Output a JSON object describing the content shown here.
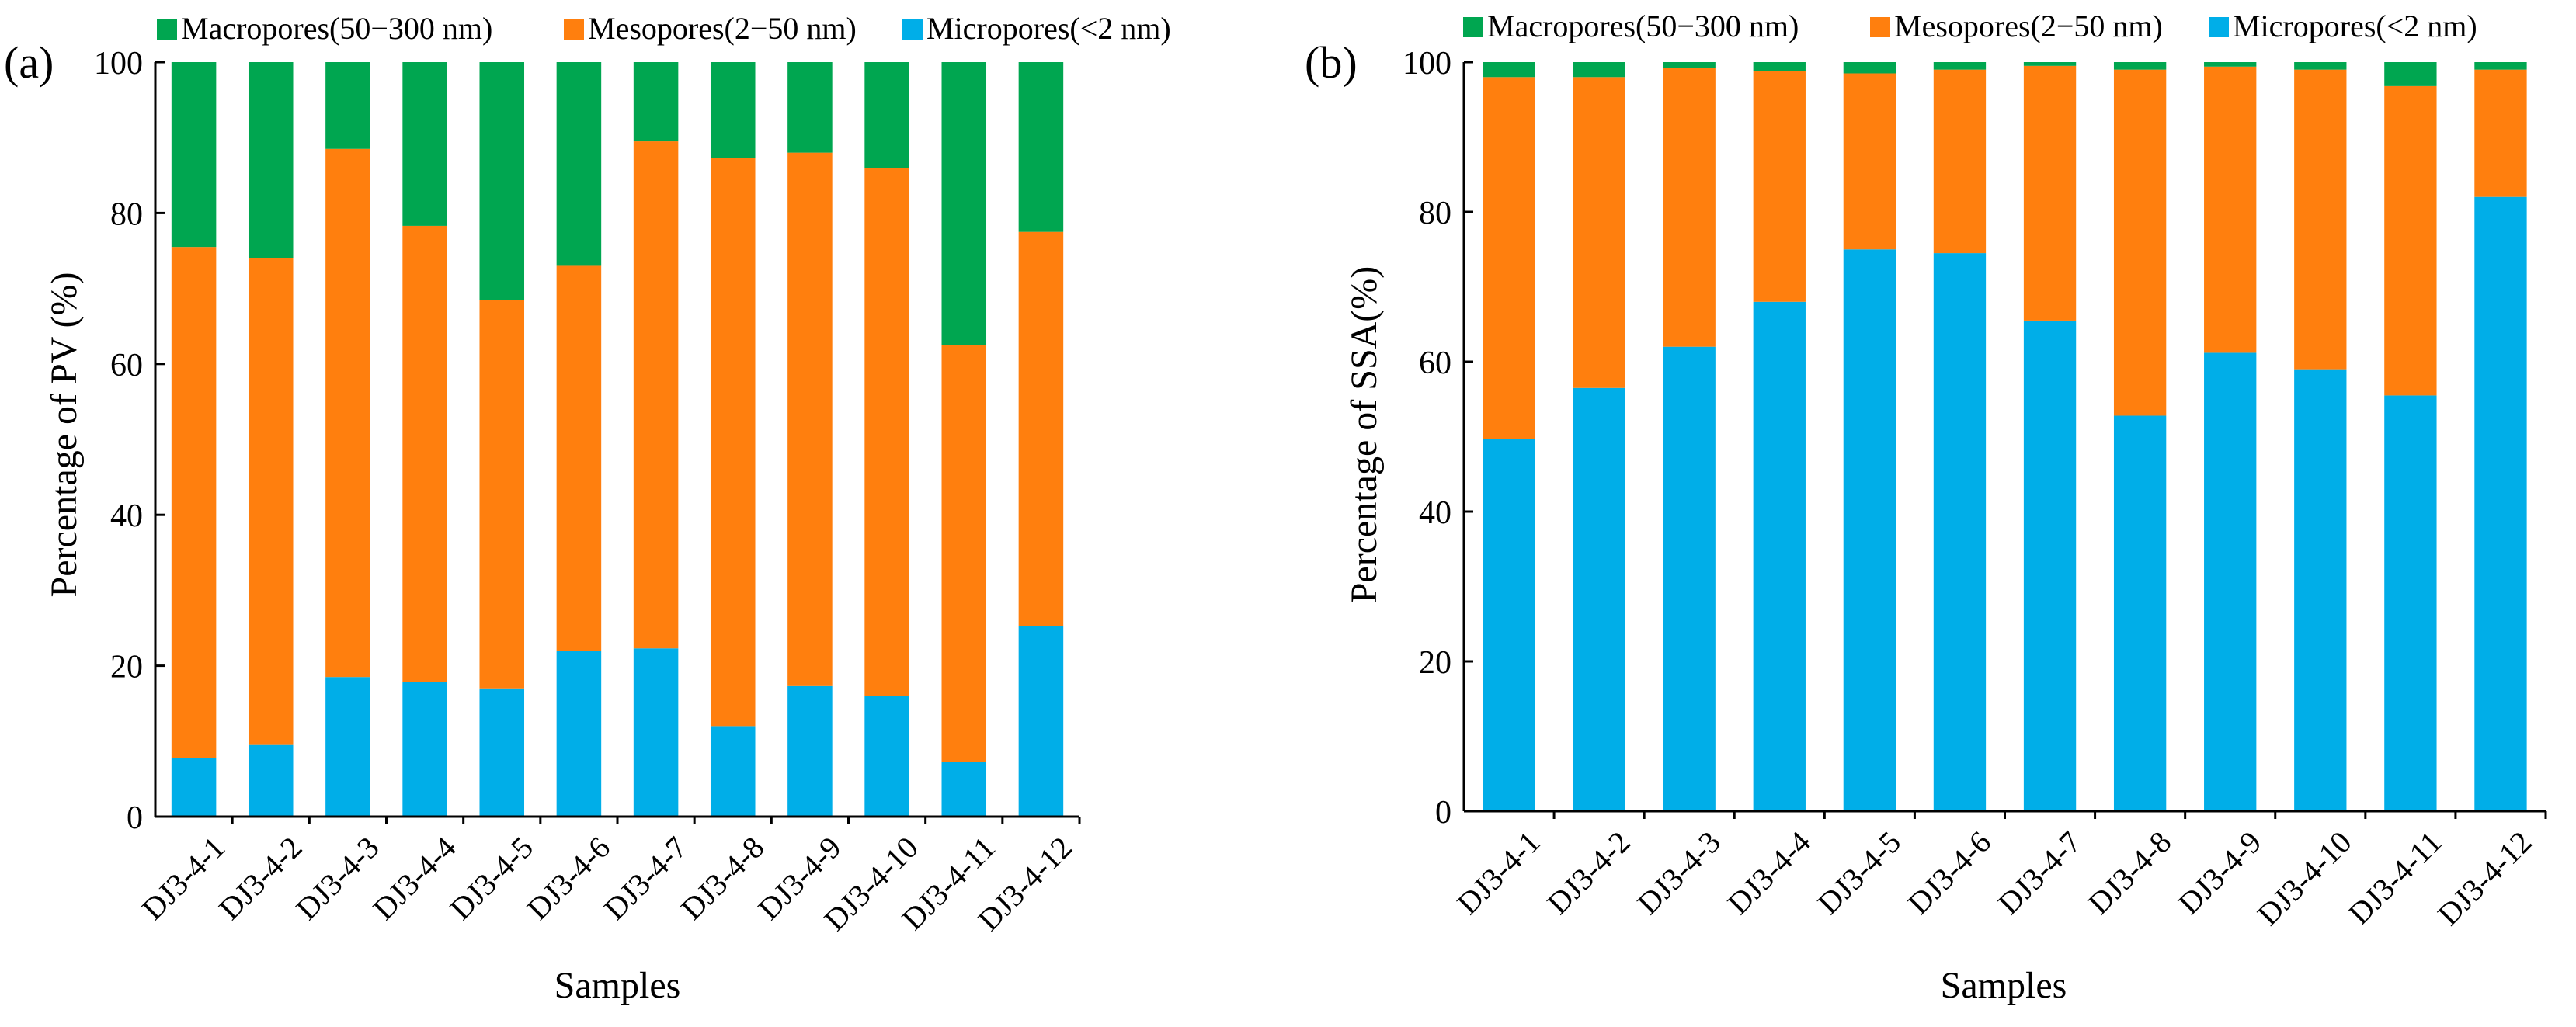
{
  "legend_colors": {
    "Macropores": "#00a650",
    "Mesopores": "#ff7f0e",
    "Micropores": "#00aee8"
  },
  "chart_data": [
    {
      "type": "bar",
      "stacked": true,
      "panel_label": "(a)",
      "categories": [
        "DJ3-4-1",
        "DJ3-4-2",
        "DJ3-4-3",
        "DJ3-4-4",
        "DJ3-4-5",
        "DJ3-4-6",
        "DJ3-4-7",
        "DJ3-4-8",
        "DJ3-4-9",
        "DJ3-4-10",
        "DJ3-4-11",
        "DJ3-4-12"
      ],
      "series": [
        {
          "name": "Micropores(<2 nm)",
          "color": "#00aee8",
          "values": [
            7.8,
            9.5,
            18.5,
            17.8,
            17.0,
            22.0,
            22.3,
            12.0,
            17.3,
            16.0,
            7.3,
            25.3
          ]
        },
        {
          "name": "Mesopores(2−50 nm)",
          "color": "#ff7f0e",
          "values": [
            67.7,
            64.5,
            70.0,
            60.5,
            51.5,
            51.0,
            67.2,
            75.3,
            70.7,
            70.0,
            55.2,
            52.2
          ]
        },
        {
          "name": "Macropores(50−300 nm)",
          "color": "#00a650",
          "values": [
            24.5,
            26.0,
            11.5,
            21.7,
            31.5,
            27.0,
            10.5,
            12.7,
            12.0,
            14.0,
            37.5,
            22.5
          ]
        }
      ],
      "xlabel": "Samples",
      "ylabel": "Percentage of PV (%)",
      "ylim": [
        0,
        100
      ],
      "yticks": [
        "0",
        "20",
        "40",
        "60",
        "80",
        "100"
      ]
    },
    {
      "type": "bar",
      "stacked": true,
      "panel_label": "(b)",
      "categories": [
        "DJ3-4-1",
        "DJ3-4-2",
        "DJ3-4-3",
        "DJ3-4-4",
        "DJ3-4-5",
        "DJ3-4-6",
        "DJ3-4-7",
        "DJ3-4-8",
        "DJ3-4-9",
        "DJ3-4-10",
        "DJ3-4-11",
        "DJ3-4-12"
      ],
      "series": [
        {
          "name": "Micropores(<2 nm)",
          "color": "#00aee8",
          "values": [
            49.7,
            56.5,
            62.0,
            68.0,
            75.0,
            74.5,
            65.5,
            52.8,
            61.2,
            59.0,
            55.5,
            82.0
          ]
        },
        {
          "name": "Mesopores(2−50 nm)",
          "color": "#ff7f0e",
          "values": [
            48.3,
            41.5,
            37.2,
            30.8,
            23.5,
            24.5,
            34.0,
            46.2,
            38.2,
            40.0,
            41.3,
            17.0
          ]
        },
        {
          "name": "Macropores(50−300 nm)",
          "color": "#00a650",
          "values": [
            2.0,
            2.0,
            0.8,
            1.2,
            1.5,
            1.0,
            0.5,
            1.0,
            0.6,
            1.0,
            3.2,
            1.0
          ]
        }
      ],
      "xlabel": "Samples",
      "ylabel": "Percentage of SSA(%)",
      "ylim": [
        0,
        100
      ],
      "yticks": [
        "0",
        "20",
        "40",
        "60",
        "80",
        "100"
      ]
    }
  ]
}
